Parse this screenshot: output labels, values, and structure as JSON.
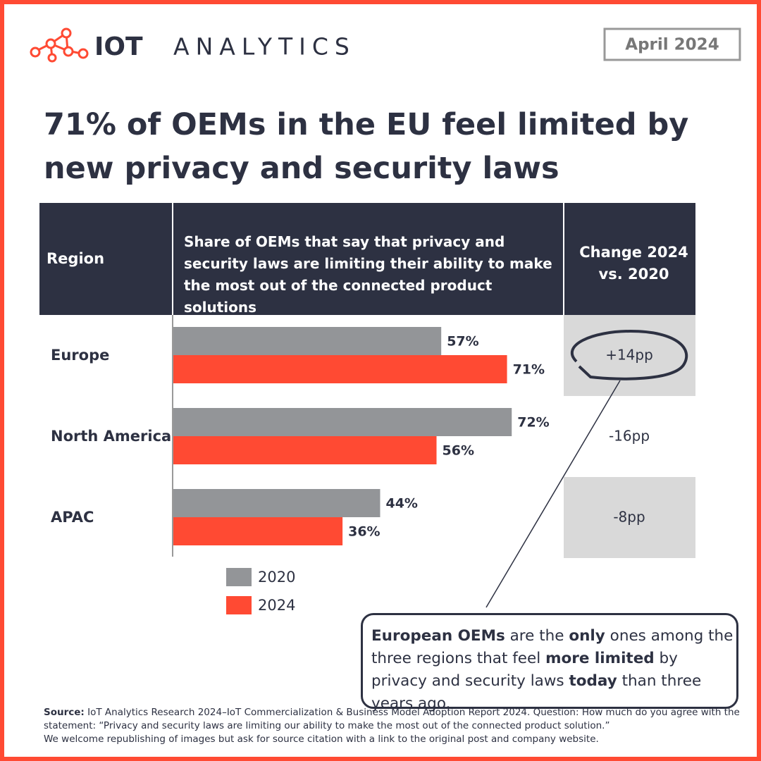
{
  "logo": {
    "bold": "IOT",
    "light": "ANALYTICS"
  },
  "date": "April 2024",
  "title": "71% of OEMs in the EU feel limited by new privacy and security laws",
  "chart_data": {
    "type": "bar",
    "orientation": "horizontal",
    "header_region": "Region",
    "header_share": "Share of OEMs that say that privacy and security laws are limiting their ability to make the most out of the connected product solutions",
    "categories": [
      "Europe",
      "North America",
      "APAC"
    ],
    "series": [
      {
        "name": "2020",
        "color": "#939598",
        "values": [
          57,
          72,
          44
        ],
        "value_labels": [
          "57%",
          "72%",
          "44%"
        ]
      },
      {
        "name": "2024",
        "color": "#ff4a33",
        "values": [
          71,
          56,
          36
        ],
        "value_labels": [
          "71%",
          "56%",
          "36%"
        ]
      }
    ],
    "xlim": [
      0,
      100
    ],
    "change": {
      "header": "Change 2024 vs. 2020",
      "values": [
        14,
        -16,
        -8
      ],
      "value_labels": [
        "+14pp",
        "-16pp",
        "-8pp"
      ]
    }
  },
  "callout": [
    {
      "text": "European OEMs",
      "bold": true
    },
    {
      "text": " are the ",
      "bold": false
    },
    {
      "text": "only",
      "bold": true
    },
    {
      "text": " ones among the three regions that feel ",
      "bold": false
    },
    {
      "text": "more limited",
      "bold": true
    },
    {
      "text": " by privacy and security laws ",
      "bold": false
    },
    {
      "text": "today",
      "bold": true
    },
    {
      "text": " than three years ago.",
      "bold": false
    }
  ],
  "source": {
    "label": "Source:",
    "text": "IoT Analytics Research 2024–IoT Commercialization & Business Model Adoption Report 2024. Question: How much do you agree with the statement: “Privacy and security laws are limiting our ability to make the most out of the connected product solution.”",
    "note": "We welcome republishing of images but ask for source citation with a link to the original post and company website."
  }
}
